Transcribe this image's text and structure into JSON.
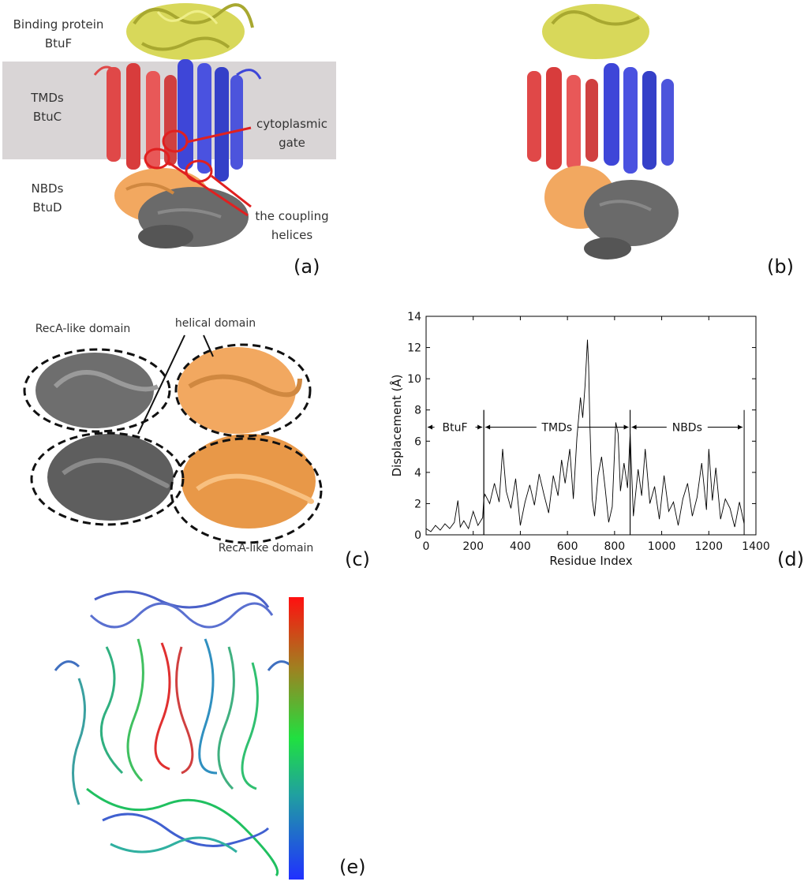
{
  "panel_a": {
    "label": "(a)",
    "binding_protein": "Binding protein",
    "btuf": "BtuF",
    "tmds": "TMDs",
    "btuc": "BtuC",
    "nbds": "NBDs",
    "btud": "BtuD",
    "cytoplasmic": "cytoplasmic",
    "gate": "gate",
    "coupling_line1": "the coupling",
    "coupling_line2": "helices"
  },
  "panel_b": {
    "label": "(b)"
  },
  "panel_c": {
    "label": "(c)",
    "reca_top": "RecA-like domain",
    "helical": "helical domain",
    "reca_bottom": "RecA-like domain"
  },
  "panel_d": {
    "label": "(d)"
  },
  "panel_e": {
    "label": "(e)"
  },
  "colors": {
    "btuf": "#d8d85a",
    "btuc_red": "#e04848",
    "btuc_blue": "#3e46d8",
    "btud_orange": "#f2a860",
    "btud_gray": "#6a6a6a",
    "membrane": "#d9d5d6",
    "annot_red": "#e02020"
  },
  "chart_data": {
    "type": "line",
    "title": "",
    "xlabel": "Residue Index",
    "ylabel": "Displacement (Å)",
    "xlim": [
      0,
      1400
    ],
    "ylim": [
      0,
      14
    ],
    "xticks": [
      0,
      200,
      400,
      600,
      800,
      1000,
      1200,
      1400
    ],
    "yticks": [
      0,
      2,
      4,
      6,
      8,
      10,
      12,
      14
    ],
    "regions": [
      {
        "name": "BtuF",
        "start": 0,
        "end": 245
      },
      {
        "name": "TMDs",
        "start": 245,
        "end": 866
      },
      {
        "name": "NBDs",
        "start": 866,
        "end": 1350
      }
    ],
    "series": [
      {
        "x": [
          0,
          20,
          40,
          60,
          80,
          100,
          120,
          135,
          145,
          160,
          180,
          200,
          220,
          240,
          245,
          250,
          270,
          290,
          310,
          325,
          340,
          360,
          380,
          400,
          420,
          440,
          460,
          480,
          500,
          520,
          540,
          560,
          575,
          590,
          610,
          625,
          640,
          655,
          665,
          675,
          685,
          690,
          695,
          705,
          715,
          730,
          745,
          760,
          775,
          790,
          805,
          815,
          825,
          840,
          855,
          866,
          880,
          900,
          915,
          930,
          950,
          970,
          990,
          1010,
          1030,
          1050,
          1070,
          1090,
          1110,
          1130,
          1150,
          1170,
          1190,
          1200,
          1215,
          1230,
          1250,
          1270,
          1290,
          1310,
          1330,
          1350
        ],
        "y": [
          0.4,
          0.2,
          0.6,
          0.3,
          0.7,
          0.4,
          0.8,
          2.2,
          0.5,
          0.9,
          0.4,
          1.5,
          0.6,
          1.1,
          2.3,
          2.6,
          2.0,
          3.3,
          2.1,
          5.5,
          2.8,
          1.7,
          3.6,
          0.6,
          2.1,
          3.2,
          1.9,
          3.9,
          2.6,
          1.4,
          3.8,
          2.5,
          4.8,
          3.3,
          5.5,
          2.3,
          6.2,
          8.8,
          7.5,
          9.6,
          12.5,
          10.8,
          7.2,
          2.3,
          1.2,
          3.8,
          5.0,
          3.0,
          0.8,
          1.8,
          7.2,
          6.5,
          2.8,
          4.6,
          3.0,
          6.5,
          1.2,
          4.2,
          2.5,
          5.5,
          2.0,
          3.1,
          1.0,
          3.8,
          1.5,
          2.1,
          0.6,
          2.3,
          3.3,
          1.2,
          2.4,
          4.6,
          1.6,
          5.5,
          2.2,
          4.3,
          1.0,
          2.3,
          1.7,
          0.5,
          2.1,
          0.7
        ]
      }
    ]
  }
}
